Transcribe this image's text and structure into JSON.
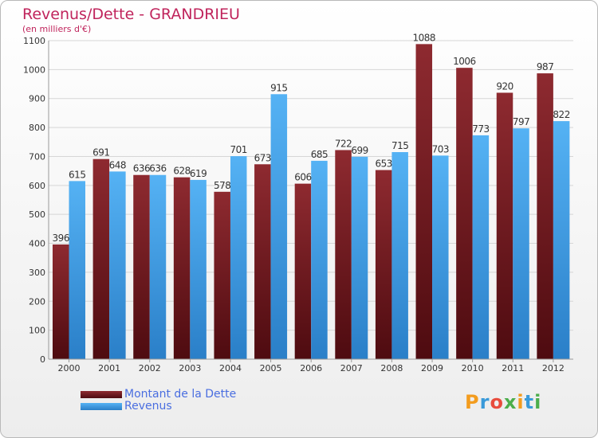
{
  "title": "Revenus/Dette - GRANDRIEU",
  "subtitle": "(en milliers d'€)",
  "legend": {
    "debt_label": "Montant de la Dette",
    "revenue_label": "Revenus"
  },
  "logo": {
    "text": "Proxiti"
  },
  "colors": {
    "debt": "#7b1d22",
    "revenue": "#3d9ce8",
    "title": "#c0245c",
    "legend_text": "#4a6ee0"
  },
  "chart_data": {
    "type": "bar",
    "categories": [
      "2000",
      "2001",
      "2002",
      "2003",
      "2004",
      "2005",
      "2006",
      "2007",
      "2008",
      "2009",
      "2010",
      "2011",
      "2012"
    ],
    "series": [
      {
        "name": "Montant de la Dette",
        "values": [
          396,
          691,
          636,
          628,
          578,
          673,
          606,
          722,
          653,
          1088,
          1006,
          920,
          987
        ]
      },
      {
        "name": "Revenus",
        "values": [
          615,
          648,
          636,
          619,
          701,
          915,
          685,
          699,
          715,
          703,
          773,
          797,
          822
        ]
      }
    ],
    "ylim": [
      0,
      1100
    ],
    "yticks": [
      0,
      100,
      200,
      300,
      400,
      500,
      600,
      700,
      800,
      900,
      1000,
      1100
    ],
    "grid": true,
    "legend_position": "bottom-left"
  }
}
